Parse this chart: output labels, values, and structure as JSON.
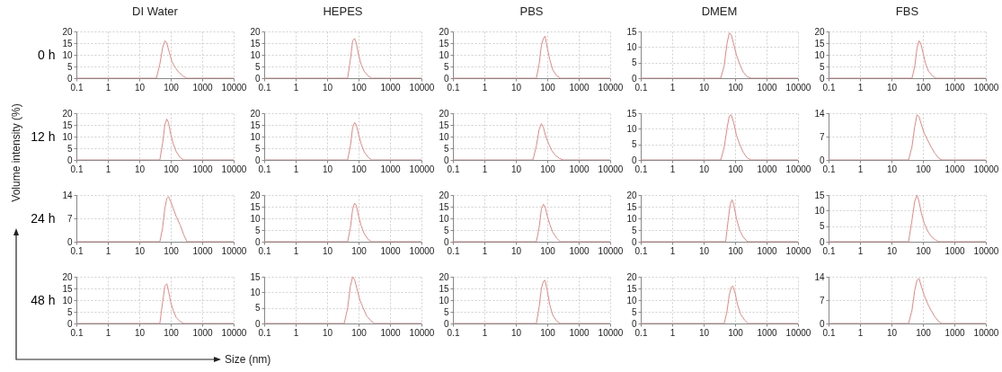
{
  "chart_data": [
    {
      "type": "line",
      "title": "DI Water",
      "ylabel": "0 h",
      "log": "x",
      "grid": true,
      "xlim": [
        0.1,
        10000
      ],
      "xticks": [
        0.1,
        1,
        10,
        100,
        1000,
        10000
      ],
      "ylim": [
        0,
        20
      ],
      "yticks": [
        0,
        5,
        10,
        15,
        20
      ],
      "series": [
        {
          "color": "#f4837d",
          "x": [
            0.1,
            35,
            45,
            55,
            65,
            75,
            90,
            110,
            140,
            180,
            240,
            320,
            10000
          ],
          "values": [
            0,
            0,
            6,
            13,
            16,
            15,
            11,
            7,
            4.5,
            2.5,
            1,
            0,
            0
          ]
        }
      ]
    },
    {
      "type": "line",
      "title": "HEPES",
      "log": "x",
      "grid": true,
      "xlim": [
        0.1,
        10000
      ],
      "xticks": [
        0.1,
        1,
        10,
        100,
        1000,
        10000
      ],
      "ylim": [
        0,
        20
      ],
      "yticks": [
        0,
        5,
        10,
        15,
        20
      ],
      "series": [
        {
          "color": "#f4837d",
          "x": [
            0.1,
            45,
            55,
            65,
            75,
            85,
            100,
            120,
            150,
            200,
            260,
            10000
          ],
          "values": [
            0,
            0,
            8,
            16,
            17,
            15,
            10,
            6,
            3,
            1,
            0,
            0
          ]
        }
      ]
    },
    {
      "type": "line",
      "title": "PBS",
      "log": "x",
      "grid": true,
      "xlim": [
        0.1,
        10000
      ],
      "xticks": [
        0.1,
        1,
        10,
        100,
        1000,
        10000
      ],
      "ylim": [
        0,
        20
      ],
      "yticks": [
        0,
        5,
        10,
        15,
        20
      ],
      "series": [
        {
          "color": "#f4837d",
          "x": [
            0.1,
            45,
            55,
            65,
            75,
            85,
            100,
            120,
            150,
            200,
            260,
            10000
          ],
          "values": [
            0,
            0,
            6,
            14,
            17,
            18,
            13,
            8,
            3.5,
            1,
            0,
            0
          ]
        }
      ]
    },
    {
      "type": "line",
      "title": "DMEM",
      "log": "x",
      "grid": true,
      "xlim": [
        0.1,
        10000
      ],
      "xticks": [
        0.1,
        1,
        10,
        100,
        1000,
        10000
      ],
      "ylim": [
        0,
        15
      ],
      "yticks": [
        0,
        5,
        10,
        15
      ],
      "series": [
        {
          "color": "#f4837d",
          "x": [
            0.1,
            35,
            45,
            55,
            65,
            75,
            90,
            110,
            140,
            180,
            240,
            320,
            10000
          ],
          "values": [
            0,
            0,
            4,
            11,
            14.5,
            14,
            11,
            7.5,
            4.5,
            2,
            0.5,
            0,
            0
          ]
        }
      ]
    },
    {
      "type": "line",
      "title": "FBS",
      "log": "x",
      "grid": true,
      "xlim": [
        0.1,
        10000
      ],
      "xticks": [
        0.1,
        1,
        10,
        100,
        1000,
        10000
      ],
      "ylim": [
        0,
        20
      ],
      "yticks": [
        0,
        5,
        10,
        15,
        20
      ],
      "series": [
        {
          "color": "#f4837d",
          "x": [
            0.1,
            45,
            55,
            65,
            75,
            85,
            100,
            120,
            150,
            200,
            260,
            10000
          ],
          "values": [
            0,
            0,
            5,
            13,
            16,
            15,
            11,
            6.5,
            3,
            1,
            0,
            0
          ]
        }
      ]
    },
    {
      "type": "line",
      "ylabel": "12 h",
      "log": "x",
      "grid": true,
      "xlim": [
        0.1,
        10000
      ],
      "xticks": [
        0.1,
        1,
        10,
        100,
        1000,
        10000
      ],
      "ylim": [
        0,
        20
      ],
      "yticks": [
        0,
        5,
        10,
        15,
        20
      ],
      "series": [
        {
          "color": "#f4837d",
          "x": [
            0.1,
            45,
            55,
            65,
            75,
            85,
            100,
            120,
            150,
            200,
            260,
            10000
          ],
          "values": [
            0,
            0,
            7,
            15,
            17.5,
            16,
            11,
            7,
            3.5,
            1,
            0,
            0
          ]
        }
      ]
    },
    {
      "type": "line",
      "log": "x",
      "grid": true,
      "xlim": [
        0.1,
        10000
      ],
      "xticks": [
        0.1,
        1,
        10,
        100,
        1000,
        10000
      ],
      "ylim": [
        0,
        20
      ],
      "yticks": [
        0,
        5,
        10,
        15,
        20
      ],
      "series": [
        {
          "color": "#f4837d",
          "x": [
            0.1,
            45,
            55,
            65,
            75,
            85,
            100,
            120,
            150,
            200,
            260,
            10000
          ],
          "values": [
            0,
            0,
            6,
            14,
            16,
            15,
            11,
            7,
            3.5,
            1.2,
            0,
            0
          ]
        }
      ]
    },
    {
      "type": "line",
      "log": "x",
      "grid": true,
      "xlim": [
        0.1,
        10000
      ],
      "xticks": [
        0.1,
        1,
        10,
        100,
        1000,
        10000
      ],
      "ylim": [
        0,
        20
      ],
      "yticks": [
        0,
        5,
        10,
        15,
        20
      ],
      "series": [
        {
          "color": "#f4837d",
          "x": [
            0.1,
            35,
            45,
            55,
            65,
            75,
            90,
            110,
            140,
            180,
            240,
            320,
            10000
          ],
          "values": [
            0,
            0,
            6,
            13,
            15.5,
            14,
            10,
            7,
            4,
            2,
            0.7,
            0,
            0
          ]
        }
      ]
    },
    {
      "type": "line",
      "log": "x",
      "grid": true,
      "xlim": [
        0.1,
        10000
      ],
      "xticks": [
        0.1,
        1,
        10,
        100,
        1000,
        10000
      ],
      "ylim": [
        0,
        15
      ],
      "yticks": [
        0,
        5,
        10,
        15
      ],
      "series": [
        {
          "color": "#f4837d",
          "x": [
            0.1,
            35,
            45,
            55,
            65,
            75,
            90,
            110,
            140,
            180,
            240,
            320,
            10000
          ],
          "values": [
            0,
            0,
            4,
            10,
            14,
            14.5,
            12,
            8,
            5,
            2.5,
            0.7,
            0,
            0
          ]
        }
      ]
    },
    {
      "type": "line",
      "log": "x",
      "grid": true,
      "xlim": [
        0.1,
        10000
      ],
      "xticks": [
        0.1,
        1,
        10,
        100,
        1000,
        10000
      ],
      "ylim": [
        0,
        14
      ],
      "yticks": [
        0,
        7,
        14
      ],
      "series": [
        {
          "color": "#f4837d",
          "x": [
            0.1,
            35,
            45,
            55,
            65,
            75,
            90,
            110,
            140,
            180,
            240,
            320,
            400,
            10000
          ],
          "values": [
            0,
            0,
            4,
            10,
            13.5,
            13,
            10.5,
            8,
            6,
            4,
            2,
            0.5,
            0,
            0
          ]
        }
      ]
    },
    {
      "type": "line",
      "ylabel": "24 h",
      "log": "x",
      "grid": true,
      "xlim": [
        0.1,
        10000
      ],
      "xticks": [
        0.1,
        1,
        10,
        100,
        1000,
        10000
      ],
      "ylim": [
        0,
        14
      ],
      "yticks": [
        0,
        7,
        14
      ],
      "series": [
        {
          "color": "#f4837d",
          "x": [
            0.1,
            45,
            55,
            65,
            75,
            85,
            100,
            120,
            150,
            200,
            260,
            330,
            10000
          ],
          "values": [
            0,
            0,
            4,
            10,
            13,
            13.5,
            12,
            10,
            7.5,
            5,
            2,
            0,
            0
          ]
        }
      ]
    },
    {
      "type": "line",
      "log": "x",
      "grid": true,
      "xlim": [
        0.1,
        10000
      ],
      "xticks": [
        0.1,
        1,
        10,
        100,
        1000,
        10000
      ],
      "ylim": [
        0,
        20
      ],
      "yticks": [
        0,
        5,
        10,
        15,
        20
      ],
      "series": [
        {
          "color": "#f4837d",
          "x": [
            0.1,
            45,
            55,
            65,
            75,
            85,
            100,
            120,
            150,
            200,
            260,
            10000
          ],
          "values": [
            0,
            0,
            6,
            14,
            16.5,
            15.5,
            11,
            7,
            3.5,
            1,
            0,
            0
          ]
        }
      ]
    },
    {
      "type": "line",
      "log": "x",
      "grid": true,
      "xlim": [
        0.1,
        10000
      ],
      "xticks": [
        0.1,
        1,
        10,
        100,
        1000,
        10000
      ],
      "ylim": [
        0,
        20
      ],
      "yticks": [
        0,
        5,
        10,
        15,
        20
      ],
      "series": [
        {
          "color": "#f4837d",
          "x": [
            0.1,
            45,
            55,
            65,
            75,
            85,
            100,
            120,
            150,
            200,
            260,
            10000
          ],
          "values": [
            0,
            0,
            6,
            14,
            16,
            15,
            11,
            7.5,
            4,
            1.5,
            0,
            0
          ]
        }
      ]
    },
    {
      "type": "line",
      "log": "x",
      "grid": true,
      "xlim": [
        0.1,
        10000
      ],
      "xticks": [
        0.1,
        1,
        10,
        100,
        1000,
        10000
      ],
      "ylim": [
        0,
        20
      ],
      "yticks": [
        0,
        5,
        10,
        15,
        20
      ],
      "series": [
        {
          "color": "#f4837d",
          "x": [
            0.1,
            50,
            60,
            70,
            80,
            90,
            110,
            140,
            180,
            250,
            10000
          ],
          "values": [
            0,
            0,
            9,
            16,
            18,
            16,
            10,
            5,
            2,
            0,
            0
          ]
        }
      ]
    },
    {
      "type": "line",
      "log": "x",
      "grid": true,
      "xlim": [
        0.1,
        10000
      ],
      "xticks": [
        0.1,
        1,
        10,
        100,
        1000,
        10000
      ],
      "ylim": [
        0,
        15
      ],
      "yticks": [
        0,
        5,
        10,
        15
      ],
      "series": [
        {
          "color": "#f4837d",
          "x": [
            0.1,
            35,
            45,
            55,
            65,
            75,
            90,
            110,
            140,
            180,
            240,
            320,
            10000
          ],
          "values": [
            0,
            0,
            7,
            13,
            15,
            13,
            9,
            6,
            3.5,
            1.8,
            0.7,
            0,
            0
          ]
        }
      ]
    },
    {
      "type": "line",
      "ylabel": "48 h",
      "log": "x",
      "grid": true,
      "xlim": [
        0.1,
        10000
      ],
      "xticks": [
        0.1,
        1,
        10,
        100,
        1000,
        10000
      ],
      "ylim": [
        0,
        20
      ],
      "yticks": [
        0,
        5,
        10,
        15,
        20
      ],
      "annotations": [
        "Volume intensity (%)",
        "Size (nm)"
      ],
      "series": [
        {
          "color": "#f4837d",
          "x": [
            0.1,
            45,
            55,
            65,
            75,
            85,
            100,
            120,
            150,
            200,
            260,
            10000
          ],
          "values": [
            0,
            0,
            9,
            16,
            17,
            14,
            9,
            5.5,
            2.5,
            0.8,
            0,
            0
          ]
        }
      ]
    },
    {
      "type": "line",
      "log": "x",
      "grid": true,
      "xlim": [
        0.1,
        10000
      ],
      "xticks": [
        0.1,
        1,
        10,
        100,
        1000,
        10000
      ],
      "ylim": [
        0,
        15
      ],
      "yticks": [
        0,
        5,
        10,
        15
      ],
      "series": [
        {
          "color": "#f4837d",
          "x": [
            0.1,
            35,
            45,
            55,
            65,
            75,
            90,
            110,
            140,
            180,
            240,
            320,
            10000
          ],
          "values": [
            0,
            0,
            5,
            12,
            15,
            14,
            11,
            7.5,
            5,
            2.5,
            1,
            0,
            0
          ]
        }
      ]
    },
    {
      "type": "line",
      "log": "x",
      "grid": true,
      "xlim": [
        0.1,
        10000
      ],
      "xticks": [
        0.1,
        1,
        10,
        100,
        1000,
        10000
      ],
      "ylim": [
        0,
        20
      ],
      "yticks": [
        0,
        5,
        10,
        15,
        20
      ],
      "series": [
        {
          "color": "#f4837d",
          "x": [
            0.1,
            45,
            55,
            65,
            75,
            85,
            100,
            120,
            150,
            200,
            260,
            10000
          ],
          "values": [
            0,
            0,
            7,
            15,
            18,
            18.5,
            14,
            8,
            3.5,
            1,
            0,
            0
          ]
        }
      ]
    },
    {
      "type": "line",
      "log": "x",
      "grid": true,
      "xlim": [
        0.1,
        10000
      ],
      "xticks": [
        0.1,
        1,
        10,
        100,
        1000,
        10000
      ],
      "ylim": [
        0,
        20
      ],
      "yticks": [
        0,
        5,
        10,
        15,
        20
      ],
      "series": [
        {
          "color": "#f4837d",
          "x": [
            0.1,
            45,
            55,
            65,
            75,
            85,
            100,
            120,
            150,
            200,
            260,
            10000
          ],
          "values": [
            0,
            0,
            5,
            12,
            15.5,
            16,
            13,
            8,
            4,
            1.5,
            0,
            0
          ]
        }
      ]
    },
    {
      "type": "line",
      "log": "x",
      "grid": true,
      "xlim": [
        0.1,
        10000
      ],
      "xticks": [
        0.1,
        1,
        10,
        100,
        1000,
        10000
      ],
      "ylim": [
        0,
        14
      ],
      "yticks": [
        0,
        7,
        14
      ],
      "series": [
        {
          "color": "#f4837d",
          "x": [
            0.1,
            35,
            45,
            55,
            65,
            75,
            90,
            110,
            140,
            180,
            240,
            320,
            400,
            10000
          ],
          "values": [
            0,
            0,
            4,
            10,
            13,
            13.5,
            11,
            8.5,
            6,
            4,
            2,
            0.5,
            0,
            0
          ]
        }
      ]
    }
  ]
}
